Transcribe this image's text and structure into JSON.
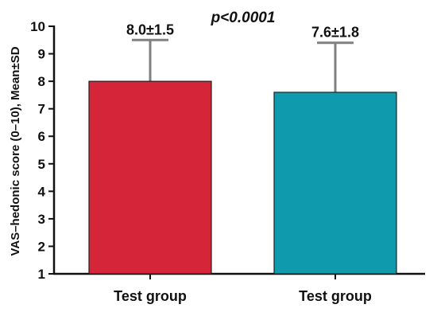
{
  "chart_data": {
    "type": "bar",
    "categories": [
      "Test group",
      "Test group"
    ],
    "values": [
      8.0,
      7.6
    ],
    "errors": [
      1.5,
      1.8
    ],
    "data_labels": [
      "8.0±1.5",
      "7.6±1.8"
    ],
    "colors": [
      "#d42638",
      "#0f9aae"
    ],
    "error_color": "#808080",
    "ylabel": "VAS–hedonic score (0–10), Mean±SD",
    "ylim": [
      1,
      10
    ],
    "yticks": [
      1,
      2,
      3,
      4,
      5,
      6,
      7,
      8,
      9,
      10
    ],
    "annotation": "p<0.0001",
    "grid": false
  }
}
